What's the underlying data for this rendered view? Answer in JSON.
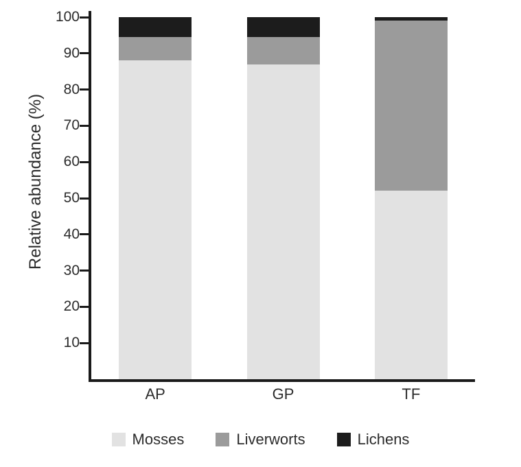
{
  "chart_data": {
    "type": "bar",
    "variant": "stacked",
    "title": "",
    "xlabel": "",
    "ylabel": "Relative abundance (%)",
    "categories": [
      "AP",
      "GP",
      "TF"
    ],
    "series": [
      {
        "name": "Mosses",
        "color": "#e2e2e2",
        "values": [
          88,
          87,
          52
        ]
      },
      {
        "name": "Liverworts",
        "color": "#9b9b9b",
        "values": [
          6.5,
          7.5,
          47
        ]
      },
      {
        "name": "Lichens",
        "color": "#1c1c1c",
        "values": [
          5.5,
          5.5,
          1
        ]
      }
    ],
    "ylim": [
      0,
      100
    ],
    "yticks": [
      10,
      20,
      30,
      40,
      50,
      60,
      70,
      80,
      90,
      100
    ],
    "grid": false,
    "legend_position": "bottom",
    "axis_color": "#1a1a1a"
  }
}
